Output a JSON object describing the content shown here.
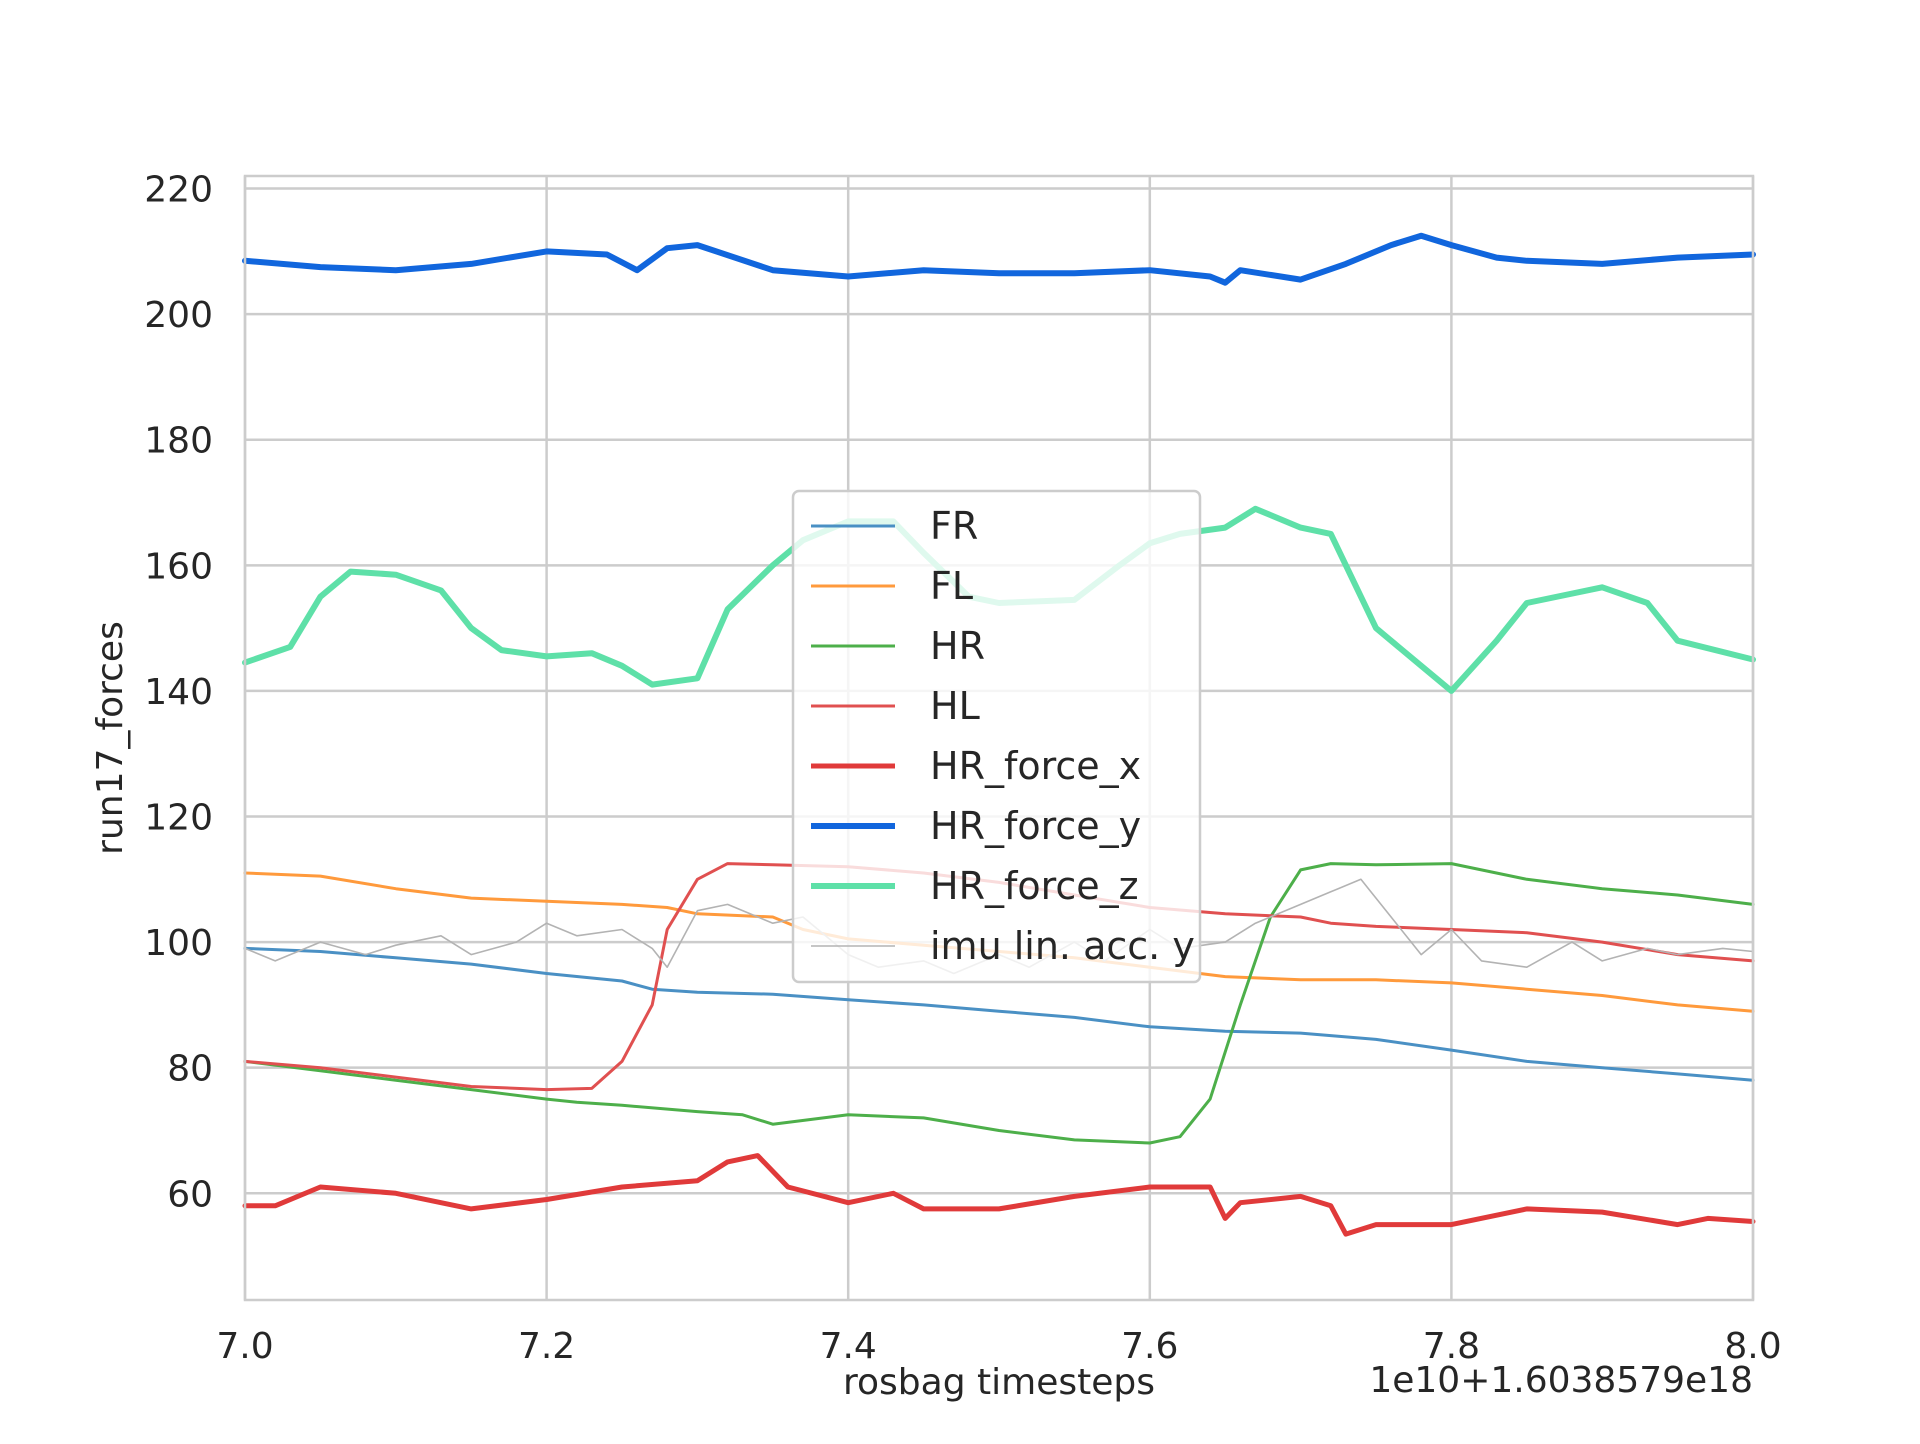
{
  "chart_data": {
    "type": "line",
    "title": "",
    "xlabel": "rosbag timesteps",
    "ylabel": "run17_forces",
    "x_offset_label": "1e10+1.6038579e18",
    "xlim": [
      7.0,
      8.0
    ],
    "ylim": [
      43,
      222
    ],
    "xticks": [
      "7.0",
      "7.2",
      "7.4",
      "7.6",
      "7.8",
      "8.0"
    ],
    "yticks": [
      "60",
      "80",
      "100",
      "120",
      "140",
      "160",
      "180",
      "200",
      "220"
    ],
    "grid": true,
    "legend_position": "center",
    "series": [
      {
        "name": "FR",
        "color": "#4a90c4",
        "x": [
          7.0,
          7.05,
          7.1,
          7.15,
          7.2,
          7.25,
          7.27,
          7.3,
          7.35,
          7.4,
          7.45,
          7.5,
          7.55,
          7.6,
          7.65,
          7.7,
          7.75,
          7.8,
          7.85,
          7.9,
          7.95,
          8.0
        ],
        "y": [
          99,
          98.5,
          97.5,
          96.5,
          95,
          93.8,
          92.5,
          92,
          91.7,
          90.8,
          90,
          89,
          88,
          86.5,
          85.8,
          85.5,
          84.5,
          82.8,
          81,
          80,
          79,
          78
        ]
      },
      {
        "name": "FL",
        "color": "#ff9a3c",
        "x": [
          7.0,
          7.05,
          7.1,
          7.15,
          7.2,
          7.25,
          7.28,
          7.3,
          7.35,
          7.37,
          7.4,
          7.45,
          7.5,
          7.55,
          7.6,
          7.65,
          7.7,
          7.75,
          7.8,
          7.85,
          7.9,
          7.95,
          8.0
        ],
        "y": [
          111,
          110.5,
          108.5,
          107,
          106.5,
          106,
          105.5,
          104.5,
          104,
          102,
          100.5,
          99.5,
          98.5,
          97.5,
          96,
          94.5,
          94,
          94,
          93.5,
          92.5,
          91.5,
          90,
          89
        ]
      },
      {
        "name": "HR",
        "color": "#4daf4a",
        "x": [
          7.0,
          7.05,
          7.1,
          7.15,
          7.2,
          7.22,
          7.25,
          7.3,
          7.33,
          7.35,
          7.4,
          7.45,
          7.5,
          7.55,
          7.6,
          7.62,
          7.64,
          7.66,
          7.68,
          7.7,
          7.72,
          7.75,
          7.8,
          7.85,
          7.9,
          7.95,
          8.0
        ],
        "y": [
          81,
          79.5,
          78,
          76.5,
          75,
          74.5,
          74,
          73,
          72.5,
          71,
          72.5,
          72,
          70,
          68.5,
          68,
          69,
          75,
          90,
          104,
          111.5,
          112.5,
          112.3,
          112.5,
          110,
          108.5,
          107.5,
          106
        ]
      },
      {
        "name": "HL",
        "color": "#e05050",
        "x": [
          7.0,
          7.05,
          7.1,
          7.15,
          7.2,
          7.23,
          7.25,
          7.27,
          7.28,
          7.3,
          7.32,
          7.35,
          7.4,
          7.45,
          7.5,
          7.55,
          7.6,
          7.65,
          7.7,
          7.72,
          7.75,
          7.8,
          7.85,
          7.9,
          7.95,
          8.0
        ],
        "y": [
          81,
          80,
          78.5,
          77,
          76.5,
          76.7,
          81,
          90,
          102,
          110,
          112.5,
          112.3,
          112,
          111,
          109.5,
          107.5,
          105.5,
          104.5,
          104,
          103,
          102.5,
          102,
          101.5,
          100,
          98,
          97
        ]
      },
      {
        "name": "HR_force_x",
        "color": "#e03a3a",
        "x": [
          7.0,
          7.02,
          7.05,
          7.1,
          7.15,
          7.2,
          7.25,
          7.3,
          7.32,
          7.34,
          7.36,
          7.4,
          7.43,
          7.45,
          7.5,
          7.55,
          7.6,
          7.64,
          7.65,
          7.66,
          7.7,
          7.72,
          7.73,
          7.75,
          7.8,
          7.85,
          7.9,
          7.95,
          7.97,
          8.0
        ],
        "y": [
          58,
          58,
          61,
          60,
          57.5,
          59,
          61,
          62,
          65,
          66,
          61,
          58.5,
          60,
          57.5,
          57.5,
          59.5,
          61,
          61,
          56,
          58.5,
          59.5,
          58,
          53.5,
          55,
          55,
          57.5,
          57,
          55,
          56,
          55.5
        ]
      },
      {
        "name": "HR_force_y",
        "color": "#1166dd",
        "x": [
          7.0,
          7.05,
          7.1,
          7.15,
          7.2,
          7.24,
          7.26,
          7.28,
          7.3,
          7.35,
          7.4,
          7.45,
          7.5,
          7.55,
          7.6,
          7.64,
          7.65,
          7.66,
          7.7,
          7.73,
          7.76,
          7.78,
          7.8,
          7.83,
          7.85,
          7.9,
          7.95,
          8.0
        ],
        "y": [
          208.5,
          207.5,
          207,
          208,
          210,
          209.5,
          207,
          210.5,
          211,
          207,
          206,
          207,
          206.5,
          206.5,
          207,
          206,
          205,
          207,
          205.5,
          208,
          211,
          212.5,
          211,
          209,
          208.5,
          208,
          209,
          209.5
        ]
      },
      {
        "name": "HR_force_z",
        "color": "#5ee0a8",
        "x": [
          7.0,
          7.03,
          7.05,
          7.07,
          7.1,
          7.13,
          7.15,
          7.17,
          7.2,
          7.23,
          7.25,
          7.27,
          7.3,
          7.32,
          7.35,
          7.37,
          7.4,
          7.43,
          7.45,
          7.48,
          7.5,
          7.55,
          7.58,
          7.6,
          7.62,
          7.65,
          7.67,
          7.7,
          7.72,
          7.75,
          7.78,
          7.8,
          7.83,
          7.85,
          7.9,
          7.93,
          7.95,
          8.0
        ],
        "y": [
          144.5,
          147,
          155,
          159,
          158.5,
          156,
          150,
          146.5,
          145.5,
          146,
          144,
          141,
          142,
          153,
          160,
          164,
          167,
          167,
          162,
          155,
          154,
          154.5,
          160,
          163.5,
          165,
          166,
          169,
          166,
          165,
          150,
          144,
          140,
          148,
          154,
          156.5,
          154,
          148,
          145
        ]
      },
      {
        "name": "imu lin. acc. y",
        "color": "#b3b3b3",
        "x": [
          7.0,
          7.02,
          7.05,
          7.08,
          7.1,
          7.13,
          7.15,
          7.18,
          7.2,
          7.22,
          7.25,
          7.27,
          7.28,
          7.3,
          7.32,
          7.35,
          7.37,
          7.4,
          7.42,
          7.45,
          7.47,
          7.5,
          7.52,
          7.55,
          7.57,
          7.6,
          7.62,
          7.65,
          7.67,
          7.7,
          7.72,
          7.74,
          7.76,
          7.78,
          7.8,
          7.82,
          7.85,
          7.88,
          7.9,
          7.93,
          7.95,
          7.98,
          8.0
        ],
        "y": [
          99,
          97,
          100,
          98,
          99.5,
          101,
          98,
          100,
          103,
          101,
          102,
          99,
          96,
          105,
          106,
          103,
          104,
          98,
          96,
          97,
          95,
          98,
          96,
          100,
          97,
          102,
          99,
          100,
          103,
          106,
          108,
          110,
          104,
          98,
          102,
          97,
          96,
          100,
          97,
          99,
          98,
          99,
          98.5
        ]
      }
    ]
  }
}
